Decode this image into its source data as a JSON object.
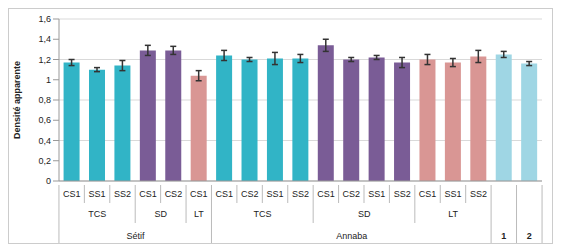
{
  "chart_data": {
    "type": "bar",
    "y_label": "Densité apparente",
    "categories": [
      "CS1",
      "SS1",
      "SS2",
      "CS1",
      "CS2",
      "CS1",
      "CS1",
      "CS2",
      "SS1",
      "SS2",
      "CS1",
      "CS2",
      "SS1",
      "SS2",
      "CS1",
      "SS1",
      "SS2",
      null,
      null
    ],
    "values": [
      1.17,
      1.1,
      1.14,
      1.29,
      1.29,
      1.04,
      1.24,
      1.2,
      1.21,
      1.21,
      1.34,
      1.2,
      1.22,
      1.17,
      1.2,
      1.17,
      1.23,
      1.25,
      1.16
    ],
    "errors": [
      0.03,
      0.02,
      0.05,
      0.05,
      0.04,
      0.05,
      0.05,
      0.02,
      0.06,
      0.04,
      0.06,
      0.02,
      0.02,
      0.05,
      0.05,
      0.04,
      0.06,
      0.03,
      0.02
    ],
    "colors": [
      "#31b4c6",
      "#31b4c6",
      "#31b4c6",
      "#7a5c96",
      "#7a5c96",
      "#d99694",
      "#31b4c6",
      "#31b4c6",
      "#31b4c6",
      "#31b4c6",
      "#7a5c96",
      "#7a5c96",
      "#7a5c96",
      "#7a5c96",
      "#d99694",
      "#d99694",
      "#d99694",
      "#9fd6e4",
      "#9fd6e4"
    ],
    "groups": [
      {
        "label": "TCS",
        "count": 3
      },
      {
        "label": "SD",
        "count": 2
      },
      {
        "label": "LT",
        "count": 1
      },
      {
        "label": "TCS",
        "count": 4
      },
      {
        "label": "SD",
        "count": 4
      },
      {
        "label": "LT",
        "count": 3
      }
    ],
    "sites": [
      {
        "label": "Sétif",
        "count": 6
      },
      {
        "label": "Annaba",
        "count": 11
      },
      {
        "label": "1",
        "count": 1
      },
      {
        "label": "2",
        "count": 1
      }
    ],
    "ylim": [
      0,
      1.6
    ],
    "yticks": [
      0,
      {
        "value": 0.2,
        "label": "0,2"
      },
      {
        "value": 0.4,
        "label": "0,4"
      },
      {
        "value": 0.6,
        "label": "0,6"
      },
      {
        "value": 0.8,
        "label": "0,8"
      },
      {
        "value": 1,
        "label": "1"
      },
      {
        "value": 1.2,
        "label": "1,2"
      },
      {
        "value": 1.4,
        "label": "1,4"
      },
      {
        "value": 1.6,
        "label": "1,6"
      }
    ],
    "grid": true
  }
}
